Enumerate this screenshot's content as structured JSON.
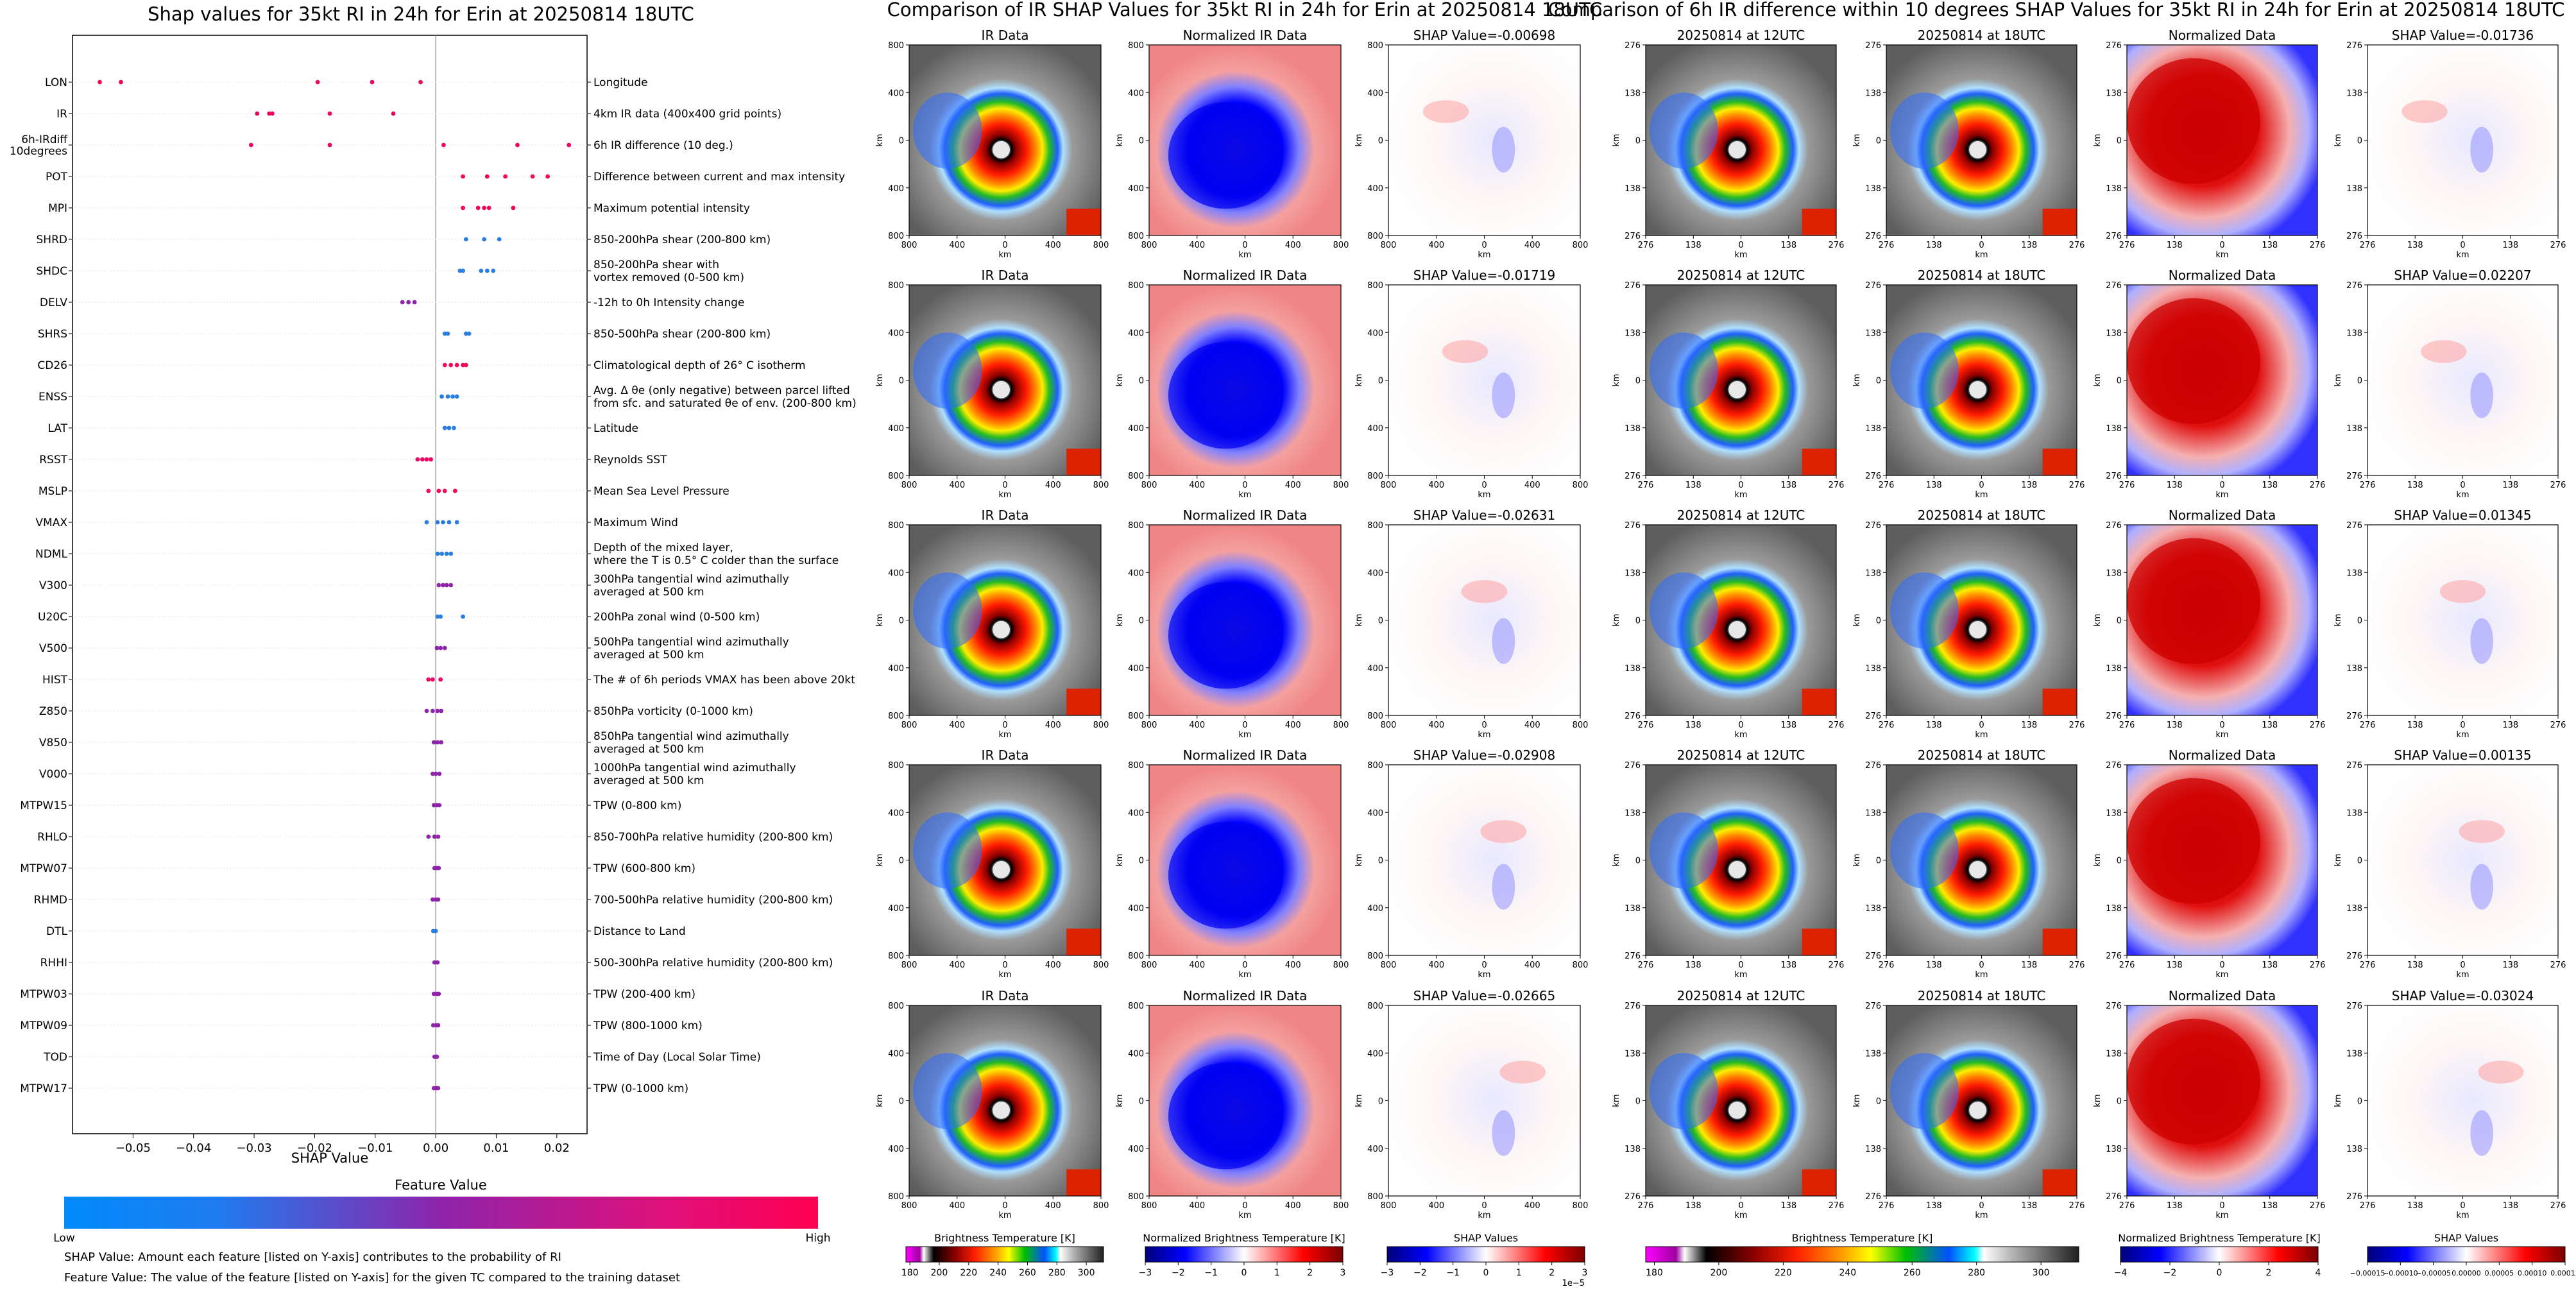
{
  "left_panel": {
    "title": "Shap values for 35kt RI in 24h for Erin at 20250814 18UTC",
    "xlabel": "SHAP Value",
    "colorbar_title": "Feature Value",
    "colorbar_low": "Low",
    "colorbar_high": "High",
    "footnote_1": "SHAP Value: Amount each feature [listed on Y-axis] contributes to the probability of RI",
    "footnote_2": "Feature Value: The value of the feature [listed on Y-axis] for the given TC compared to the training dataset"
  },
  "middle_panel": {
    "title": "Comparison of IR SHAP Values for 35kt RI in 24h for Erin at 20250814 18UTC",
    "col_titles": [
      "IR Data",
      "Normalized IR Data"
    ],
    "shap_titles": [
      "SHAP Value=-0.00698",
      "SHAP Value=-0.01719",
      "SHAP Value=-0.02631",
      "SHAP Value=-0.02908",
      "SHAP Value=-0.02665"
    ],
    "axis_label": "km",
    "x_ticks": [
      "800",
      "400",
      "0",
      "400",
      "800"
    ],
    "y_ticks": [
      "800",
      "400",
      "0",
      "400",
      "800"
    ],
    "colorbars": [
      {
        "label": "Brightness Temperature [K]",
        "ticks": [
          "180",
          "200",
          "220",
          "240",
          "260",
          "280",
          "300"
        ]
      },
      {
        "label": "Normalized Brightness Temperature [K]",
        "ticks": [
          "−3",
          "−2",
          "−1",
          "0",
          "1",
          "2",
          "3"
        ]
      },
      {
        "label": "SHAP Values",
        "ticks": [
          "−3",
          "−2",
          "−1",
          "0",
          "1",
          "2",
          "3"
        ],
        "offset": "1e−5"
      }
    ]
  },
  "right_panel": {
    "title": "Comparison of 6h IR difference within 10 degrees SHAP Values for 35kt RI in 24h for Erin at 20250814 18UTC",
    "col_titles": [
      "20250814 at 12UTC",
      "20250814 at 18UTC",
      "Normalized Data"
    ],
    "shap_titles": [
      "SHAP Value=-0.01736",
      "SHAP Value=0.02207",
      "SHAP Value=0.01345",
      "SHAP Value=0.00135",
      "SHAP Value=-0.03024"
    ],
    "axis_label": "km",
    "x_ticks": [
      "276",
      "138",
      "0",
      "138",
      "276"
    ],
    "y_ticks": [
      "276",
      "138",
      "0",
      "138",
      "276"
    ],
    "colorbars": [
      {
        "label": "Brightness Temperature [K]",
        "ticks": [
          "180",
          "200",
          "220",
          "240",
          "260",
          "280",
          "300"
        ]
      },
      {
        "label": "Normalized Brightness Temperature [K]",
        "ticks": [
          "−4",
          "−2",
          "0",
          "2",
          "4"
        ]
      },
      {
        "label": "SHAP Values",
        "ticks": [
          "−0.00015",
          "−0.00010",
          "−0.00005",
          "0.00000",
          "0.00005",
          "0.00010",
          "0.00015"
        ]
      }
    ]
  },
  "colors": {
    "low": "#1e88e5",
    "mid": "#8e24aa",
    "high": "#ff0052",
    "axis": "#000000",
    "grid": "#e5e5e5"
  },
  "chart_data": {
    "type": "scatter",
    "title": "Shap values for 35kt RI in 24h for Erin at 20250814 18UTC",
    "xlabel": "SHAP Value",
    "xlim": [
      -0.06,
      0.025
    ],
    "x_ticks": [
      -0.05,
      -0.04,
      -0.03,
      -0.02,
      -0.01,
      0.0,
      0.01,
      0.02
    ],
    "x_tick_labels": [
      "−0.05",
      "−0.04",
      "−0.03",
      "−0.02",
      "−0.01",
      "0.00",
      "0.01",
      "0.02"
    ],
    "features": [
      {
        "name": "LON",
        "description": "Longitude",
        "points": [
          [
            -0.0555,
            0.95
          ],
          [
            -0.052,
            0.92
          ],
          [
            -0.0195,
            0.9
          ],
          [
            -0.0105,
            0.9
          ],
          [
            -0.0025,
            0.9
          ]
        ]
      },
      {
        "name": "IR",
        "description": "4km IR data (400x400 grid points)",
        "points": [
          [
            -0.0295,
            0.92
          ],
          [
            -0.0275,
            0.92
          ],
          [
            -0.027,
            0.92
          ],
          [
            -0.0175,
            0.92
          ],
          [
            -0.007,
            0.92
          ]
        ]
      },
      {
        "name": "6h-IRdiff\n10degrees",
        "description": "6h IR difference (10 deg.)",
        "points": [
          [
            -0.0305,
            0.92
          ],
          [
            -0.0175,
            0.92
          ],
          [
            0.0013,
            0.92
          ],
          [
            0.0135,
            0.92
          ],
          [
            0.022,
            0.92
          ]
        ]
      },
      {
        "name": "POT",
        "description": "Difference between current and max intensity",
        "points": [
          [
            0.0045,
            0.95
          ],
          [
            0.0085,
            0.95
          ],
          [
            0.0115,
            0.95
          ],
          [
            0.016,
            0.95
          ],
          [
            0.0185,
            0.95
          ]
        ]
      },
      {
        "name": "MPI",
        "description": "Maximum potential intensity",
        "points": [
          [
            0.0045,
            0.95
          ],
          [
            0.007,
            0.95
          ],
          [
            0.008,
            0.95
          ],
          [
            0.0088,
            0.95
          ],
          [
            0.0128,
            0.95
          ]
        ]
      },
      {
        "name": "SHRD",
        "description": "850-200hPa shear (200-800 km)",
        "points": [
          [
            0.005,
            0.05
          ],
          [
            0.008,
            0.05
          ],
          [
            0.0105,
            0.05
          ]
        ]
      },
      {
        "name": "SHDC",
        "description": "850-200hPa shear with\nvortex removed (0-500 km)",
        "points": [
          [
            0.004,
            0.05
          ],
          [
            0.0045,
            0.05
          ],
          [
            0.0075,
            0.05
          ],
          [
            0.0085,
            0.05
          ],
          [
            0.0095,
            0.05
          ]
        ]
      },
      {
        "name": "DELV",
        "description": "-12h to 0h Intensity change",
        "points": [
          [
            -0.0055,
            0.5
          ],
          [
            -0.0045,
            0.5
          ],
          [
            -0.0035,
            0.5
          ]
        ]
      },
      {
        "name": "SHRS",
        "description": "850-500hPa shear (200-800 km)",
        "points": [
          [
            0.0015,
            0.05
          ],
          [
            0.002,
            0.05
          ],
          [
            0.005,
            0.05
          ],
          [
            0.0055,
            0.05
          ]
        ]
      },
      {
        "name": "CD26",
        "description": "Climatological depth of 26° C isotherm",
        "points": [
          [
            0.0015,
            0.95
          ],
          [
            0.0025,
            0.95
          ],
          [
            0.0035,
            0.95
          ],
          [
            0.0045,
            0.95
          ],
          [
            0.005,
            0.95
          ]
        ]
      },
      {
        "name": "ENSS",
        "description": "Avg. Δ θe (only negative) between parcel lifted\nfrom sfc. and saturated θe of env. (200-800 km)",
        "points": [
          [
            0.001,
            0.05
          ],
          [
            0.002,
            0.05
          ],
          [
            0.0028,
            0.05
          ],
          [
            0.0035,
            0.05
          ]
        ]
      },
      {
        "name": "LAT",
        "description": "Latitude",
        "points": [
          [
            0.0015,
            0.05
          ],
          [
            0.0022,
            0.05
          ],
          [
            0.003,
            0.05
          ]
        ]
      },
      {
        "name": "RSST",
        "description": "Reynolds SST",
        "points": [
          [
            -0.003,
            0.9
          ],
          [
            -0.0022,
            0.9
          ],
          [
            -0.0015,
            0.9
          ],
          [
            -0.0008,
            0.9
          ]
        ]
      },
      {
        "name": "MSLP",
        "description": "Mean Sea Level Pressure",
        "points": [
          [
            -0.0012,
            0.95
          ],
          [
            0.0005,
            0.95
          ],
          [
            0.0015,
            0.95
          ],
          [
            0.0032,
            0.95
          ]
        ]
      },
      {
        "name": "VMAX",
        "description": "Maximum Wind",
        "points": [
          [
            -0.0015,
            0.05
          ],
          [
            0.0003,
            0.05
          ],
          [
            0.0012,
            0.05
          ],
          [
            0.0022,
            0.05
          ],
          [
            0.0035,
            0.05
          ]
        ]
      },
      {
        "name": "NDML",
        "description": "Depth of the mixed layer,\nwhere the T is 0.5° C colder than the surface",
        "points": [
          [
            0.0003,
            0.05
          ],
          [
            0.001,
            0.05
          ],
          [
            0.0018,
            0.05
          ],
          [
            0.0025,
            0.05
          ]
        ]
      },
      {
        "name": "V300",
        "description": "300hPa tangential wind azimuthally\naveraged at 500 km",
        "points": [
          [
            0.0005,
            0.5
          ],
          [
            0.0012,
            0.5
          ],
          [
            0.0018,
            0.5
          ],
          [
            0.0025,
            0.5
          ]
        ]
      },
      {
        "name": "U20C",
        "description": "200hPa zonal wind (0-500 km)",
        "points": [
          [
            0.0003,
            0.05
          ],
          [
            0.0008,
            0.05
          ],
          [
            0.0045,
            0.05
          ]
        ]
      },
      {
        "name": "V500",
        "description": "500hPa tangential wind azimuthally\naveraged at 500 km",
        "points": [
          [
            0.0002,
            0.5
          ],
          [
            0.0008,
            0.5
          ],
          [
            0.0015,
            0.5
          ]
        ]
      },
      {
        "name": "HIST",
        "description": "The # of 6h periods VMAX has been above 20kt",
        "points": [
          [
            -0.0012,
            0.9
          ],
          [
            -0.0005,
            0.9
          ],
          [
            0.0008,
            0.9
          ]
        ]
      },
      {
        "name": "Z850",
        "description": "850hPa vorticity (0-1000 km)",
        "points": [
          [
            -0.0015,
            0.5
          ],
          [
            -0.0005,
            0.5
          ],
          [
            0.0003,
            0.5
          ],
          [
            0.0009,
            0.5
          ]
        ]
      },
      {
        "name": "V850",
        "description": "850hPa tangential wind azimuthally\naveraged at 500 km",
        "points": [
          [
            -0.0003,
            0.5
          ],
          [
            0.0003,
            0.5
          ],
          [
            0.0009,
            0.5
          ]
        ]
      },
      {
        "name": "V000",
        "description": "1000hPa tangential wind azimuthally\naveraged at 500 km",
        "points": [
          [
            -0.0005,
            0.5
          ],
          [
            0.0,
            0.5
          ],
          [
            0.0006,
            0.5
          ]
        ]
      },
      {
        "name": "MTPW15",
        "description": "TPW (0-800 km)",
        "points": [
          [
            -0.0003,
            0.5
          ],
          [
            0.0002,
            0.5
          ],
          [
            0.0006,
            0.5
          ]
        ]
      },
      {
        "name": "RHLO",
        "description": "850-700hPa relative humidity (200-800 km)",
        "points": [
          [
            -0.0012,
            0.5
          ],
          [
            -0.0002,
            0.5
          ],
          [
            0.0004,
            0.5
          ]
        ]
      },
      {
        "name": "MTPW07",
        "description": "TPW (600-800 km)",
        "points": [
          [
            -0.0002,
            0.5
          ],
          [
            0.0002,
            0.5
          ],
          [
            0.0005,
            0.5
          ]
        ]
      },
      {
        "name": "RHMD",
        "description": "700-500hPa relative humidity (200-800 km)",
        "points": [
          [
            -0.0005,
            0.5
          ],
          [
            0.0,
            0.5
          ],
          [
            0.0004,
            0.5
          ]
        ]
      },
      {
        "name": "DTL",
        "description": "Distance to Land",
        "points": [
          [
            -0.0004,
            0.05
          ],
          [
            0.0,
            0.05
          ]
        ]
      },
      {
        "name": "RHHI",
        "description": "500-300hPa relative humidity (200-800 km)",
        "points": [
          [
            -0.0002,
            0.5
          ],
          [
            0.0003,
            0.5
          ]
        ]
      },
      {
        "name": "MTPW03",
        "description": "TPW (200-400 km)",
        "points": [
          [
            -0.0003,
            0.5
          ],
          [
            0.0002,
            0.5
          ],
          [
            0.0005,
            0.5
          ]
        ]
      },
      {
        "name": "MTPW09",
        "description": "TPW (800-1000 km)",
        "points": [
          [
            -0.0004,
            0.5
          ],
          [
            0.0001,
            0.5
          ],
          [
            0.0004,
            0.5
          ]
        ]
      },
      {
        "name": "TOD",
        "description": "Time of Day (Local Solar Time)",
        "points": [
          [
            -0.0002,
            0.5
          ],
          [
            0.0002,
            0.5
          ]
        ]
      },
      {
        "name": "MTPW17",
        "description": "TPW (0-1000 km)",
        "points": [
          [
            -0.0003,
            0.5
          ],
          [
            0.0001,
            0.5
          ],
          [
            0.0004,
            0.5
          ]
        ]
      }
    ]
  }
}
